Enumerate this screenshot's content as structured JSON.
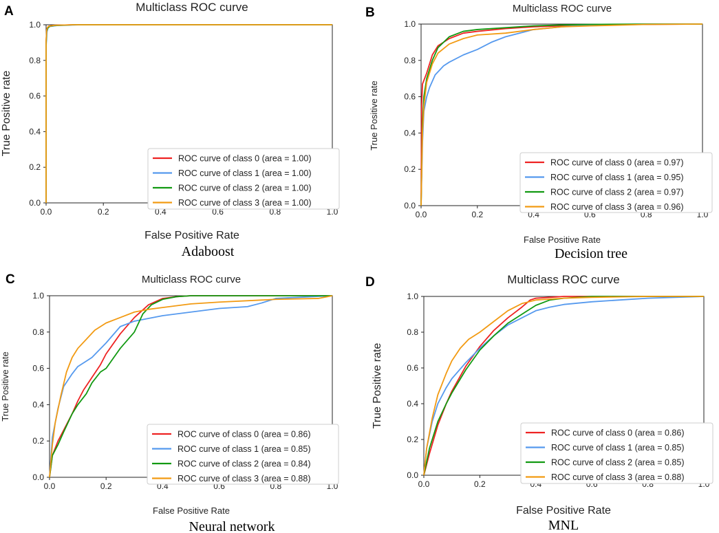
{
  "colors": [
    "#ee2222",
    "#5599ee",
    "#119911",
    "#f29a12"
  ],
  "chart_data": [
    {
      "panel": "A",
      "type": "line",
      "title": "Multiclass ROC curve",
      "xlabel": "False Positive Rate",
      "ylabel": "True Positive rate",
      "caption": "Adaboost",
      "xlim": [
        0,
        1
      ],
      "ylim": [
        0,
        1
      ],
      "xticks": [
        "0.0",
        "0.2",
        "0.4",
        "0.6",
        "0.8",
        "1.0"
      ],
      "yticks": [
        "0.0",
        "0.2",
        "0.4",
        "0.6",
        "0.8",
        "1.0"
      ],
      "legend_position": "lower-right",
      "series": [
        {
          "name": "ROC curve of class 0 (area = 1.00)",
          "x": [
            0,
            0,
            0.002,
            0.005,
            0.01,
            0.03,
            0.1,
            1
          ],
          "y": [
            0,
            0.9,
            0.97,
            0.985,
            0.992,
            0.997,
            1.0,
            1.0
          ]
        },
        {
          "name": "ROC curve of class 1 (area = 1.00)",
          "x": [
            0,
            0,
            0.003,
            0.006,
            0.012,
            0.04,
            0.12,
            1
          ],
          "y": [
            0,
            0.88,
            0.96,
            0.98,
            0.99,
            0.996,
            1.0,
            1.0
          ]
        },
        {
          "name": "ROC curve of class 2 (area = 1.00)",
          "x": [
            0,
            0,
            0.002,
            0.006,
            0.012,
            0.03,
            0.1,
            1
          ],
          "y": [
            0,
            0.89,
            0.965,
            0.982,
            0.991,
            0.996,
            1.0,
            1.0
          ]
        },
        {
          "name": "ROC curve of class 3 (area = 1.00)",
          "x": [
            0,
            0,
            0.002,
            0.005,
            0.01,
            0.03,
            0.1,
            1
          ],
          "y": [
            0,
            0.91,
            0.97,
            0.985,
            0.992,
            0.997,
            1.0,
            1.0
          ]
        }
      ]
    },
    {
      "panel": "B",
      "type": "line",
      "title": "Multiclass ROC curve",
      "xlabel": "False Positive Rate",
      "ylabel": "True Positive rate",
      "caption": "Decision tree",
      "xlim": [
        0,
        1
      ],
      "ylim": [
        0,
        1
      ],
      "xticks": [
        "0.0",
        "0.2",
        "0.4",
        "0.6",
        "0.8",
        "1.0"
      ],
      "yticks": [
        "0.0",
        "0.2",
        "0.4",
        "0.6",
        "0.8",
        "1.0"
      ],
      "legend_position": "lower-right",
      "series": [
        {
          "name": "ROC curve of class 0 (area = 0.97)",
          "x": [
            0,
            0.002,
            0.005,
            0.01,
            0.02,
            0.04,
            0.06,
            0.1,
            0.15,
            0.2,
            0.3,
            0.4,
            0.5,
            0.6,
            0.8,
            1
          ],
          "y": [
            0,
            0.55,
            0.67,
            0.69,
            0.73,
            0.83,
            0.88,
            0.92,
            0.95,
            0.96,
            0.975,
            0.985,
            0.99,
            0.995,
            0.998,
            1.0
          ]
        },
        {
          "name": "ROC curve of class 1 (area = 0.95)",
          "x": [
            0,
            0.005,
            0.01,
            0.02,
            0.03,
            0.05,
            0.08,
            0.1,
            0.15,
            0.2,
            0.25,
            0.3,
            0.4,
            0.5,
            0.6,
            0.8,
            1
          ],
          "y": [
            0,
            0.35,
            0.52,
            0.6,
            0.65,
            0.72,
            0.77,
            0.79,
            0.83,
            0.86,
            0.9,
            0.93,
            0.97,
            0.985,
            0.995,
            1.0,
            1.0
          ]
        },
        {
          "name": "ROC curve of class 2 (area = 0.97)",
          "x": [
            0,
            0.005,
            0.01,
            0.02,
            0.04,
            0.06,
            0.1,
            0.15,
            0.2,
            0.3,
            0.4,
            0.5,
            0.6,
            0.8,
            1
          ],
          "y": [
            0,
            0.45,
            0.6,
            0.7,
            0.8,
            0.87,
            0.93,
            0.96,
            0.97,
            0.98,
            0.99,
            0.995,
            0.998,
            1.0,
            1.0
          ]
        },
        {
          "name": "ROC curve of class 3 (area = 0.96)",
          "x": [
            0,
            0.005,
            0.01,
            0.02,
            0.04,
            0.06,
            0.1,
            0.15,
            0.2,
            0.3,
            0.4,
            0.5,
            0.6,
            0.8,
            1
          ],
          "y": [
            0,
            0.4,
            0.55,
            0.68,
            0.78,
            0.84,
            0.89,
            0.92,
            0.94,
            0.95,
            0.97,
            0.985,
            0.99,
            0.998,
            1.0
          ]
        }
      ]
    },
    {
      "panel": "C",
      "type": "line",
      "title": "Multiclass ROC curve",
      "xlabel": "False Positive Rate",
      "ylabel": "True Positive rate",
      "caption": "Neural network",
      "xlim": [
        0,
        1
      ],
      "ylim": [
        0,
        1
      ],
      "xticks": [
        "0.0",
        "0.2",
        "0.4",
        "0.6",
        "0.8",
        "1.0"
      ],
      "yticks": [
        "0.0",
        "0.2",
        "0.4",
        "0.6",
        "0.8",
        "1.0"
      ],
      "legend_position": "lower-right",
      "series": [
        {
          "name": "ROC curve of class 0 (area = 0.86)",
          "x": [
            0,
            0.01,
            0.03,
            0.05,
            0.08,
            0.1,
            0.12,
            0.15,
            0.18,
            0.2,
            0.25,
            0.3,
            0.35,
            0.4,
            0.45,
            0.5,
            0.6,
            0.8,
            1
          ],
          "y": [
            0,
            0.12,
            0.2,
            0.26,
            0.35,
            0.42,
            0.48,
            0.55,
            0.62,
            0.68,
            0.79,
            0.88,
            0.95,
            0.985,
            0.995,
            1.0,
            1.0,
            1.0,
            1.0
          ]
        },
        {
          "name": "ROC curve of class 1 (area = 0.85)",
          "x": [
            0,
            0.01,
            0.03,
            0.05,
            0.08,
            0.1,
            0.15,
            0.2,
            0.25,
            0.3,
            0.35,
            0.4,
            0.5,
            0.6,
            0.7,
            0.75,
            0.8,
            1
          ],
          "y": [
            0,
            0.22,
            0.38,
            0.5,
            0.57,
            0.61,
            0.66,
            0.74,
            0.83,
            0.86,
            0.875,
            0.89,
            0.91,
            0.93,
            0.94,
            0.96,
            0.985,
            1.0
          ]
        },
        {
          "name": "ROC curve of class 2 (area = 0.84)",
          "x": [
            0,
            0.01,
            0.03,
            0.05,
            0.08,
            0.1,
            0.13,
            0.15,
            0.18,
            0.2,
            0.25,
            0.3,
            0.33,
            0.36,
            0.4,
            0.45,
            0.5,
            0.7,
            1
          ],
          "y": [
            0,
            0.12,
            0.18,
            0.25,
            0.35,
            0.4,
            0.46,
            0.52,
            0.58,
            0.6,
            0.71,
            0.8,
            0.9,
            0.95,
            0.98,
            0.995,
            1.0,
            1.0,
            1.0
          ]
        },
        {
          "name": "ROC curve of class 3 (area = 0.88)",
          "x": [
            0,
            0.01,
            0.02,
            0.04,
            0.06,
            0.08,
            0.1,
            0.13,
            0.16,
            0.2,
            0.25,
            0.3,
            0.35,
            0.4,
            0.5,
            0.6,
            0.8,
            0.95,
            1
          ],
          "y": [
            0,
            0.18,
            0.3,
            0.45,
            0.58,
            0.66,
            0.71,
            0.76,
            0.81,
            0.85,
            0.88,
            0.91,
            0.925,
            0.935,
            0.955,
            0.965,
            0.98,
            0.985,
            1.0
          ]
        }
      ]
    },
    {
      "panel": "D",
      "type": "line",
      "title": "Multiclass ROC curve",
      "xlabel": "False Positive Rate",
      "ylabel": "True Positive rate",
      "caption": "MNL",
      "xlim": [
        0,
        1
      ],
      "ylim": [
        0,
        1
      ],
      "xticks": [
        "0.0",
        "0.2",
        "0.4",
        "0.6",
        "0.8",
        "1.0"
      ],
      "yticks": [
        "0.0",
        "0.2",
        "0.4",
        "0.6",
        "0.8",
        "1.0"
      ],
      "legend_position": "lower-right",
      "series": [
        {
          "name": "ROC curve of class 0 (area = 0.86)",
          "x": [
            0,
            0.02,
            0.05,
            0.08,
            0.1,
            0.15,
            0.2,
            0.25,
            0.3,
            0.35,
            0.38,
            0.4,
            0.45,
            0.5,
            0.7,
            1
          ],
          "y": [
            0,
            0.12,
            0.28,
            0.4,
            0.47,
            0.61,
            0.72,
            0.81,
            0.88,
            0.94,
            0.98,
            0.99,
            0.995,
            1.0,
            1.0,
            1.0
          ]
        },
        {
          "name": "ROC curve of class 1 (area = 0.85)",
          "x": [
            0,
            0.01,
            0.03,
            0.05,
            0.08,
            0.1,
            0.15,
            0.2,
            0.25,
            0.3,
            0.35,
            0.4,
            0.45,
            0.5,
            0.6,
            0.7,
            0.8,
            1
          ],
          "y": [
            0,
            0.15,
            0.3,
            0.4,
            0.49,
            0.54,
            0.63,
            0.71,
            0.78,
            0.84,
            0.88,
            0.92,
            0.94,
            0.955,
            0.97,
            0.98,
            0.99,
            1.0
          ]
        },
        {
          "name": "ROC curve of class 2 (area = 0.85)",
          "x": [
            0,
            0.02,
            0.05,
            0.08,
            0.1,
            0.15,
            0.2,
            0.25,
            0.3,
            0.35,
            0.4,
            0.45,
            0.5,
            0.6,
            0.8,
            1
          ],
          "y": [
            0,
            0.15,
            0.3,
            0.4,
            0.46,
            0.59,
            0.7,
            0.78,
            0.85,
            0.9,
            0.95,
            0.98,
            0.99,
            1.0,
            1.0,
            1.0
          ]
        },
        {
          "name": "ROC curve of class 3 (area = 0.88)",
          "x": [
            0,
            0.01,
            0.03,
            0.05,
            0.08,
            0.1,
            0.13,
            0.16,
            0.2,
            0.25,
            0.3,
            0.35,
            0.4,
            0.5,
            0.6,
            0.8,
            1
          ],
          "y": [
            0,
            0.15,
            0.32,
            0.45,
            0.57,
            0.64,
            0.71,
            0.76,
            0.8,
            0.86,
            0.92,
            0.96,
            0.98,
            0.99,
            0.995,
            1.0,
            1.0
          ]
        }
      ]
    }
  ]
}
